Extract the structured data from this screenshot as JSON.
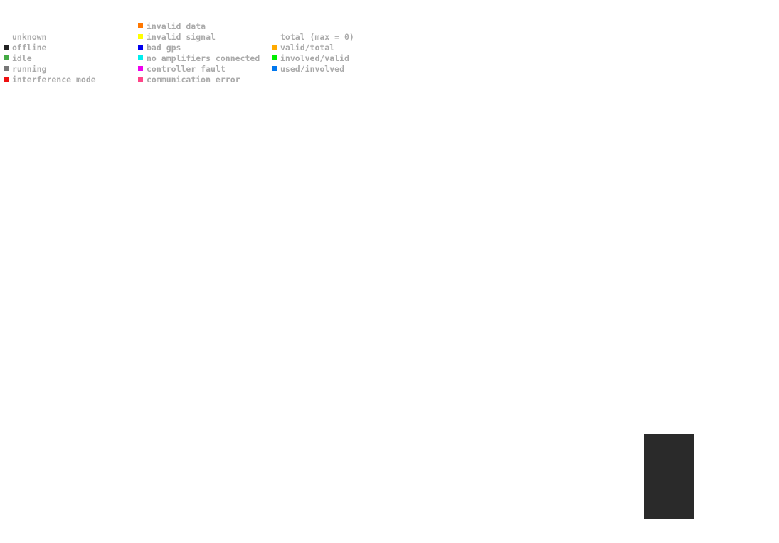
{
  "legend": {
    "columns": [
      {
        "items": [
          {
            "label": "unknown",
            "row": 1
          },
          {
            "label": "offline",
            "color": "#222222",
            "row": 2
          },
          {
            "label": "idle",
            "color": "#44aa44",
            "row": 3
          },
          {
            "label": "running",
            "color": "#777777",
            "row": 4
          },
          {
            "label": "interference mode",
            "color": "#ee1111",
            "row": 5
          }
        ]
      },
      {
        "items": [
          {
            "label": "invalid data",
            "color": "#ff7700",
            "row": 0
          },
          {
            "label": "invalid signal",
            "color": "#ffff00",
            "row": 1
          },
          {
            "label": "bad gps",
            "color": "#0000ee",
            "row": 2
          },
          {
            "label": "no amplifiers connected",
            "color": "#00eeee",
            "row": 3
          },
          {
            "label": "controller fault",
            "color": "#ee00ee",
            "row": 4
          },
          {
            "label": "communication error",
            "color": "#ff4488",
            "row": 5
          }
        ]
      },
      {
        "items": [
          {
            "label": "total (max = 0)",
            "row": 1
          },
          {
            "label": "valid/total",
            "color": "#ffaa00",
            "row": 2
          },
          {
            "label": "involved/valid",
            "color": "#00ee00",
            "row": 3
          },
          {
            "label": "used/involved",
            "color": "#0077ee",
            "row": 4
          }
        ]
      }
    ]
  }
}
